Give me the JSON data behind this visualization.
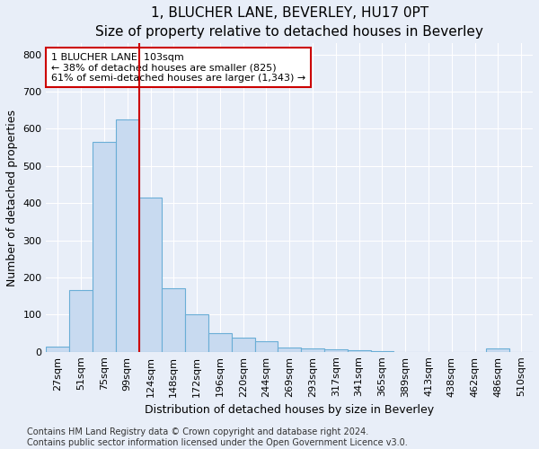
{
  "title": "1, BLUCHER LANE, BEVERLEY, HU17 0PT",
  "subtitle": "Size of property relative to detached houses in Beverley",
  "xlabel": "Distribution of detached houses by size in Beverley",
  "ylabel": "Number of detached properties",
  "bar_labels": [
    "27sqm",
    "51sqm",
    "75sqm",
    "99sqm",
    "124sqm",
    "148sqm",
    "172sqm",
    "196sqm",
    "220sqm",
    "244sqm",
    "269sqm",
    "293sqm",
    "317sqm",
    "341sqm",
    "365sqm",
    "389sqm",
    "413sqm",
    "438sqm",
    "462sqm",
    "486sqm",
    "510sqm"
  ],
  "bar_values": [
    15,
    165,
    565,
    625,
    415,
    172,
    102,
    50,
    37,
    28,
    12,
    10,
    6,
    4,
    1,
    0,
    0,
    0,
    0,
    8,
    0
  ],
  "bar_color": "#c8daf0",
  "bar_edge_color": "#6aaed6",
  "vline_x": 3.5,
  "vline_color": "#cc0000",
  "annotation_text": "1 BLUCHER LANE: 103sqm\n← 38% of detached houses are smaller (825)\n61% of semi-detached houses are larger (1,343) →",
  "annotation_box_color": "#ffffff",
  "annotation_box_edge": "#cc0000",
  "ylim": [
    0,
    830
  ],
  "yticks": [
    0,
    100,
    200,
    300,
    400,
    500,
    600,
    700,
    800
  ],
  "footer": "Contains HM Land Registry data © Crown copyright and database right 2024.\nContains public sector information licensed under the Open Government Licence v3.0.",
  "bg_color": "#e8eef8",
  "plot_bg_color": "#e8eef8",
  "grid_color": "#ffffff",
  "title_fontsize": 11,
  "label_fontsize": 9,
  "tick_fontsize": 8,
  "footer_fontsize": 7,
  "annot_fontsize": 8
}
